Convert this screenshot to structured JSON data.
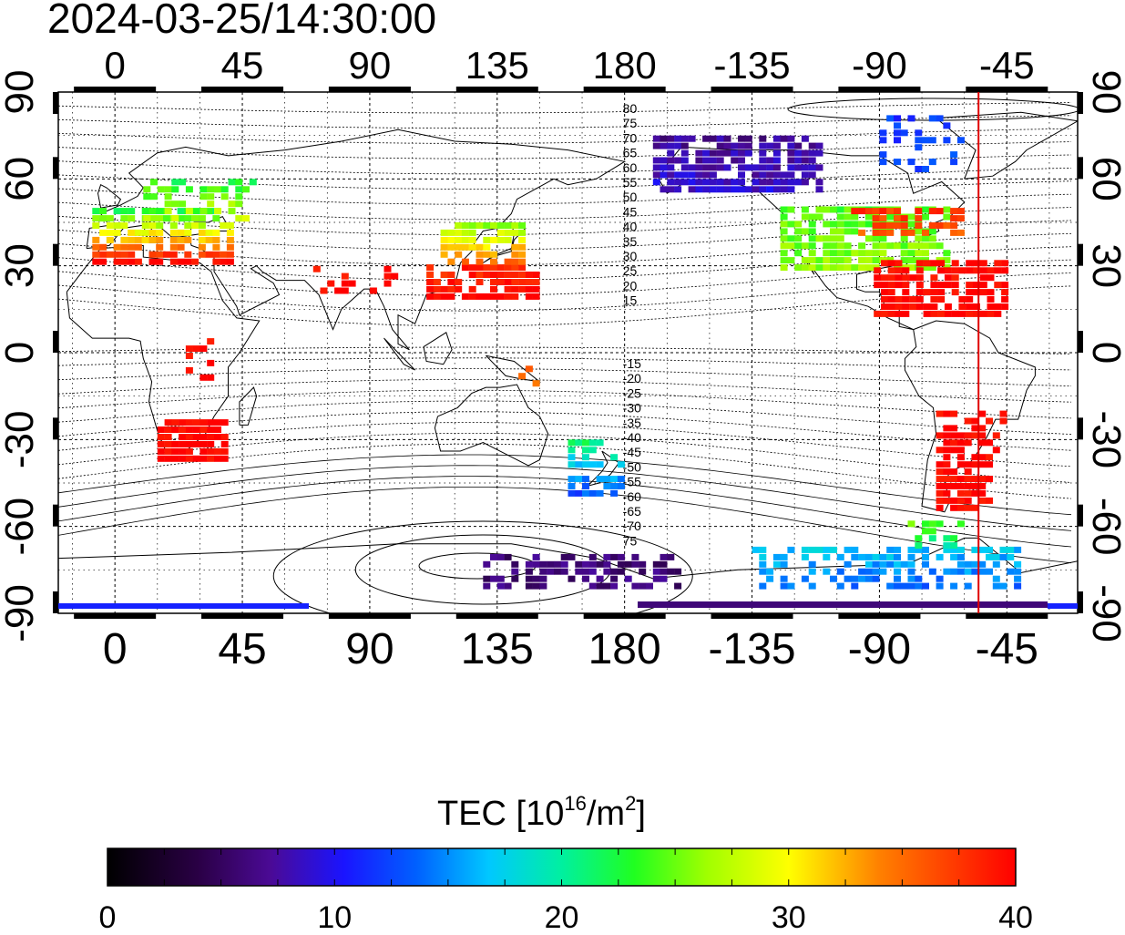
{
  "map": {
    "timestamp": "2024-03-25/14:30:00",
    "lon_ticks": [
      {
        "lon": 0,
        "label": "0"
      },
      {
        "lon": 45,
        "label": "45"
      },
      {
        "lon": 90,
        "label": "90"
      },
      {
        "lon": 135,
        "label": "135"
      },
      {
        "lon": 180,
        "label": "180"
      },
      {
        "lon": 225,
        "label": "-135"
      },
      {
        "lon": 270,
        "label": "-90"
      },
      {
        "lon": 315,
        "label": "-45"
      }
    ],
    "lat_ticks": [
      {
        "lat": 90,
        "label": "90"
      },
      {
        "lat": 60,
        "label": "60"
      },
      {
        "lat": 30,
        "label": "30"
      },
      {
        "lat": 0,
        "label": "0"
      },
      {
        "lat": -30,
        "label": "-30"
      },
      {
        "lat": -60,
        "label": "-60"
      },
      {
        "lat": -90,
        "label": "-90"
      }
    ],
    "lon_range": [
      -20,
      340
    ],
    "lat_range": [
      -90,
      90
    ],
    "contour_labels_north": [
      "80",
      "75",
      "70",
      "65",
      "60",
      "55",
      "50",
      "45",
      "40",
      "35",
      "30",
      "25",
      "20",
      "15"
    ],
    "contour_labels_south": [
      "-15",
      "-20",
      "-25",
      "-30",
      "-35",
      "-40",
      "-45",
      "-50",
      "-55",
      "-60",
      "-65",
      "-70",
      "75"
    ],
    "terminator_lon": 305,
    "terminator_color": "#e00000"
  },
  "colorbar": {
    "title_main": "TEC  [10",
    "title_sup": "16",
    "title_mid": "/m",
    "title_sup2": "2",
    "title_end": "]",
    "min": 0,
    "max": 40,
    "tick_labels": [
      "0",
      "10",
      "20",
      "30",
      "40"
    ]
  }
}
